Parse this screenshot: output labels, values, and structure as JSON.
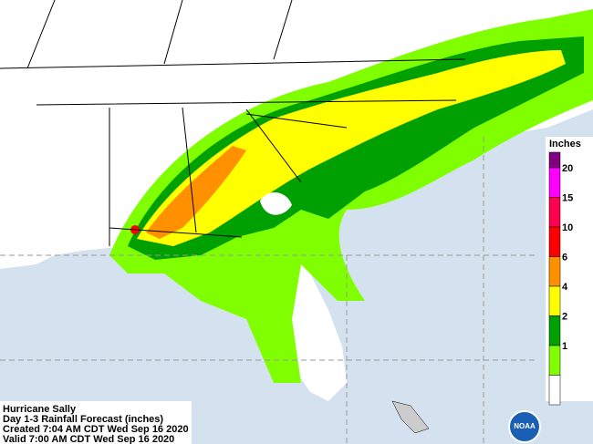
{
  "caption": {
    "lines": [
      "Hurricane Sally",
      "Day 1-3 Rainfall Forecast (inches)",
      "Created 7:04 AM CDT Wed Sep 16 2020",
      "Valid 7:00 AM CDT Wed Sep 16 2020"
    ]
  },
  "legend": {
    "title": "Inches",
    "levels": [
      {
        "label": "20",
        "color": "#800080"
      },
      {
        "label": "15",
        "color": "#ff00ff"
      },
      {
        "label": "10",
        "color": "#ff0050"
      },
      {
        "label": "6",
        "color": "#ff0000"
      },
      {
        "label": "4",
        "color": "#ff9000"
      },
      {
        "label": "2",
        "color": "#ffff00"
      },
      {
        "label": "1",
        "color": "#00a000"
      }
    ],
    "base_colors": [
      "#80ff00",
      "#ffffff"
    ]
  },
  "logo": {
    "text": "NOAA"
  }
}
